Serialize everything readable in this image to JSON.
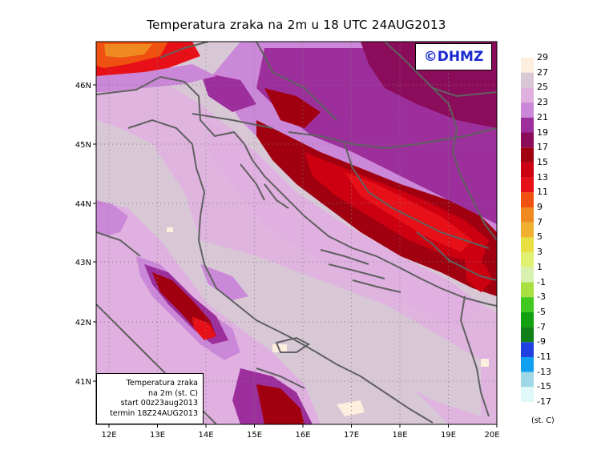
{
  "title": "Temperatura zraka na 2m u 18 UTC 24AUG2013",
  "logo_text": "©DHMZ",
  "info": {
    "line1": "Temperatura zraka",
    "line2": "na 2m (st. C)",
    "line3": "start 00z23aug2013",
    "line4": "termin 18Z24AUG2013"
  },
  "lon_ticks": [
    "12E",
    "13E",
    "14E",
    "15E",
    "16E",
    "17E",
    "18E",
    "19E",
    "20E"
  ],
  "lat_ticks": [
    "46N",
    "45N",
    "44N",
    "43N",
    "42N",
    "41N"
  ],
  "legend": {
    "unit": "(st. C)",
    "labels": [
      "29",
      "27",
      "25",
      "23",
      "21",
      "19",
      "17",
      "15",
      "13",
      "11",
      "9",
      "7",
      "5",
      "3",
      "1",
      "-1",
      "-3",
      "-5",
      "-7",
      "-9",
      "-11",
      "-13",
      "-15",
      "-17"
    ],
    "colors": [
      "#fdeede",
      "#d8c8d6",
      "#e0b0e0",
      "#cc88d8",
      "#9c2f9c",
      "#8c0c5c",
      "#a00010",
      "#cc0010",
      "#e81018",
      "#f05010",
      "#f08a20",
      "#f0b030",
      "#e8e040",
      "#e0f070",
      "#d8f0b0",
      "#a8e040",
      "#40c820",
      "#10a010",
      "#108018",
      "#2040e0",
      "#10a0f0",
      "#a0d8e8",
      "#e0f8f8"
    ]
  },
  "colors": {
    "sea": "#d8c8d6",
    "sea_warm": "#e0b0e0",
    "coast_line": "#606060",
    "logo": "#1a2ad0"
  }
}
